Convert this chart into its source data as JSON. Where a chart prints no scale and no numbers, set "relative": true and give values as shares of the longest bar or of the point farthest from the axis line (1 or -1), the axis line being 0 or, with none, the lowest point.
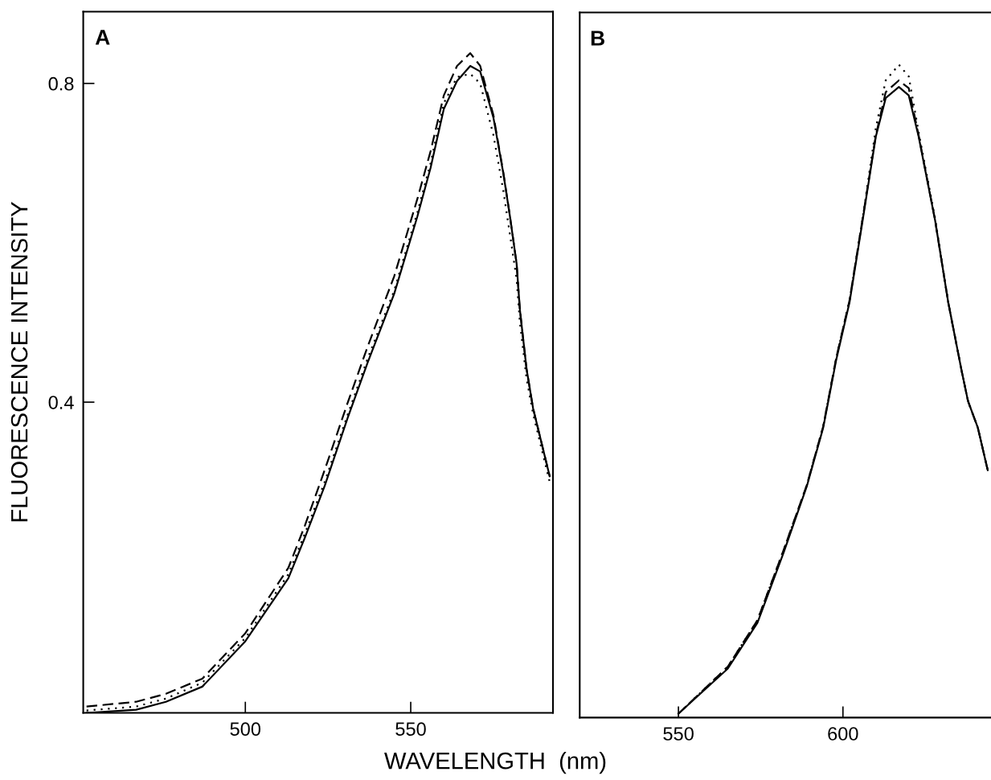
{
  "chart_data": [
    {
      "type": "line",
      "annotations": [
        "A"
      ],
      "xlabel": "WAVELENGTH  (nm)",
      "ylabel": "FLUORESCENCE INTENSITY",
      "xlim": [
        451,
        593
      ],
      "ylim": [
        0.01,
        0.89
      ],
      "xticks": [
        500,
        550
      ],
      "yticks": [
        0.4,
        0.8
      ],
      "x": [
        452,
        467,
        476,
        487,
        500,
        513,
        518,
        524,
        531,
        537,
        545,
        552,
        556,
        560,
        564,
        568,
        571,
        575,
        578,
        580,
        582,
        583,
        585,
        587,
        592
      ],
      "series": [
        {
          "color": "#000000",
          "line_style": "solid",
          "values": [
            0.01,
            0.014,
            0.024,
            0.043,
            0.1,
            0.179,
            0.23,
            0.295,
            0.381,
            0.45,
            0.536,
            0.633,
            0.694,
            0.768,
            0.803,
            0.822,
            0.815,
            0.757,
            0.687,
            0.633,
            0.574,
            0.516,
            0.442,
            0.392,
            0.307
          ]
        },
        {
          "color": "#000000",
          "line_style": "dashed",
          "values": [
            0.018,
            0.024,
            0.034,
            0.053,
            0.11,
            0.192,
            0.245,
            0.315,
            0.4,
            0.47,
            0.558,
            0.655,
            0.715,
            0.785,
            0.822,
            0.838,
            0.822,
            0.76,
            0.688,
            0.633,
            0.574,
            0.516,
            0.442,
            0.392,
            0.307
          ]
        },
        {
          "color": "#000000",
          "line_style": "dotted",
          "values": [
            0.013,
            0.018,
            0.028,
            0.048,
            0.104,
            0.184,
            0.235,
            0.3,
            0.385,
            0.455,
            0.54,
            0.638,
            0.7,
            0.775,
            0.808,
            0.812,
            0.8,
            0.735,
            0.665,
            0.61,
            0.555,
            0.5,
            0.43,
            0.385,
            0.3
          ]
        }
      ]
    },
    {
      "type": "line",
      "annotations": [
        "B"
      ],
      "tick_labels": "x",
      "relative": true,
      "xlim": [
        520,
        645
      ],
      "xticks": [
        550,
        600
      ],
      "x": [
        550,
        565,
        574,
        582,
        589,
        594,
        598,
        602,
        606,
        610,
        613,
        617,
        620,
        623,
        628,
        632,
        636,
        638,
        641,
        644
      ],
      "series": [
        {
          "color": "#000000",
          "line_style": "solid",
          "values": [
            0.006,
            0.075,
            0.145,
            0.253,
            0.354,
            0.444,
            0.549,
            0.636,
            0.762,
            0.89,
            0.949,
            0.966,
            0.953,
            0.89,
            0.762,
            0.636,
            0.533,
            0.485,
            0.444,
            0.379
          ]
        },
        {
          "color": "#000000",
          "line_style": "dashed",
          "values": [
            0.006,
            0.078,
            0.149,
            0.257,
            0.356,
            0.446,
            0.552,
            0.639,
            0.765,
            0.892,
            0.958,
            0.976,
            0.964,
            0.892,
            0.762,
            0.636,
            0.533,
            0.485,
            0.444,
            0.379
          ]
        },
        {
          "color": "#000000",
          "line_style": "dotted",
          "values": [
            0.006,
            0.078,
            0.149,
            0.257,
            0.356,
            0.446,
            0.552,
            0.639,
            0.765,
            0.903,
            0.976,
            1.0,
            0.982,
            0.897,
            0.765,
            0.636,
            0.533,
            0.485,
            0.444,
            0.379
          ]
        }
      ]
    }
  ]
}
